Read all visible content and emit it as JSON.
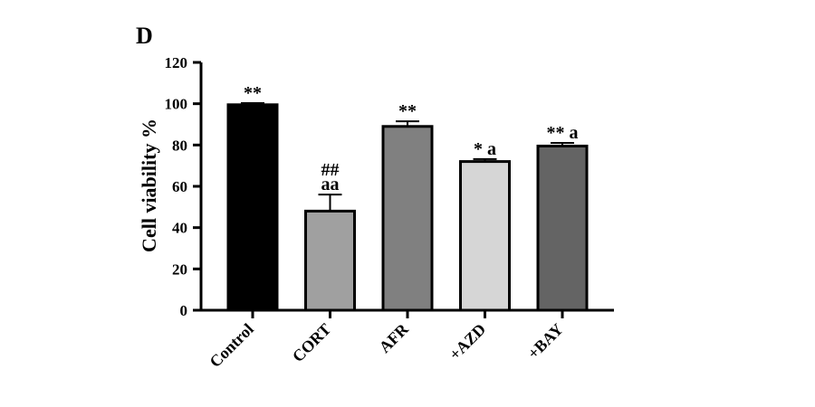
{
  "panel_label": "D",
  "chart_data": {
    "type": "bar",
    "title": "",
    "xlabel": "",
    "ylabel": "Cell viability %",
    "ylim": [
      0,
      120
    ],
    "yticks": [
      "0",
      "20",
      "40",
      "60",
      "80",
      "100",
      "120"
    ],
    "categories": [
      "Control",
      "CORT",
      "AFR",
      "+AZD",
      "+BAY"
    ],
    "values": [
      99.5,
      48,
      89,
      72,
      79.5
    ],
    "errors": [
      0.8,
      8,
      2.5,
      1.2,
      1.5
    ],
    "annotations": [
      [
        "**"
      ],
      [
        "##",
        "aa"
      ],
      [
        "**"
      ],
      [
        "* a"
      ],
      [
        "** a"
      ]
    ],
    "colors": [
      "#000000",
      "#a0a0a0",
      "#808080",
      "#d6d6d6",
      "#646464"
    ],
    "grid": false,
    "legend": "none"
  }
}
